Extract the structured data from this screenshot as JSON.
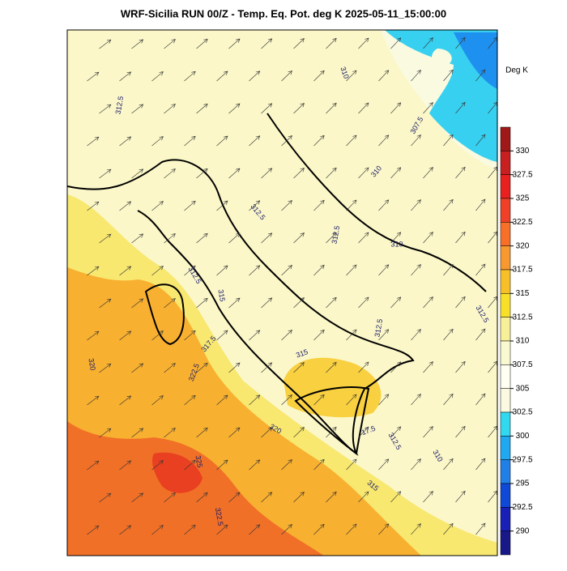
{
  "title": "WRF-Sicilia RUN 00/Z - Temp. Eq. Pot. deg K 2025-05-11_15:00:00",
  "colorbar": {
    "unit": "Deg K",
    "ticks": [
      330,
      327.5,
      325,
      322.5,
      320,
      317.5,
      315,
      312.5,
      310,
      307.5,
      305,
      302.5,
      300,
      297.5,
      295,
      292.5,
      290
    ],
    "colors": [
      "#a01818",
      "#c82020",
      "#e82020",
      "#f04028",
      "#f87028",
      "#f89830",
      "#f8c028",
      "#f8e028",
      "#f8f098",
      "#fafad0",
      "#fffff2",
      "#fafae0",
      "#30d8f0",
      "#20a8f0",
      "#2080e8",
      "#1048d8",
      "#1820b8",
      "#181888"
    ]
  },
  "contour_labels": [
    "312.5",
    "310",
    "307.5",
    "310",
    "312.5",
    "312.5",
    "310",
    "312.5",
    "315",
    "317.5",
    "320",
    "322.5",
    "315",
    "312.5",
    "312.5",
    "320",
    "17.5",
    "312.5",
    "310",
    "325",
    "315",
    "322.5"
  ]
}
